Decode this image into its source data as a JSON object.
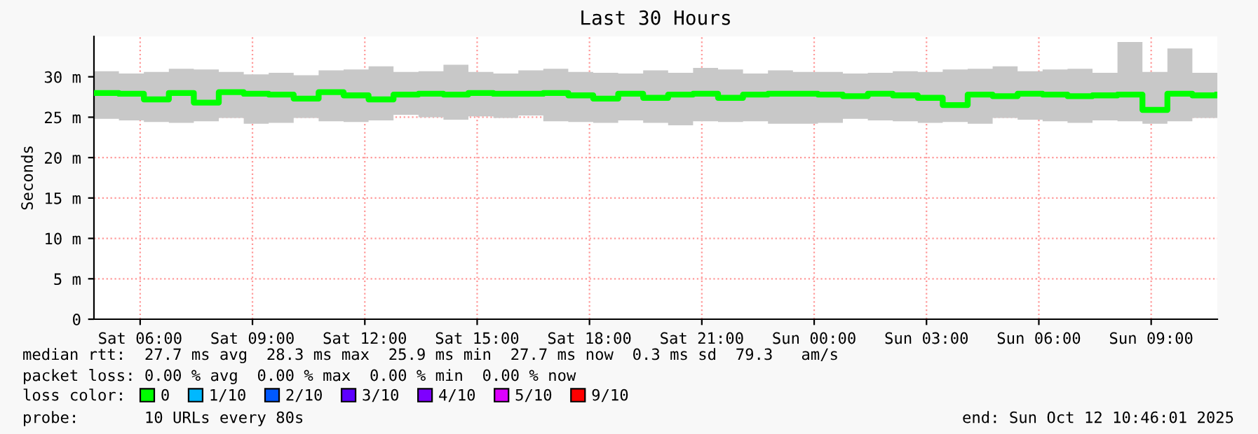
{
  "chart_data": {
    "type": "step",
    "title": "Last 30 Hours",
    "ylabel": "Seconds",
    "x": [
      "2025-10-11T04:46",
      "2025-10-11T05:26",
      "2025-10-11T06:06",
      "2025-10-11T06:46",
      "2025-10-11T07:26",
      "2025-10-11T08:06",
      "2025-10-11T08:46",
      "2025-10-11T09:26",
      "2025-10-11T10:06",
      "2025-10-11T10:46",
      "2025-10-11T11:26",
      "2025-10-11T12:06",
      "2025-10-11T12:46",
      "2025-10-11T13:26",
      "2025-10-11T14:06",
      "2025-10-11T14:46",
      "2025-10-11T15:26",
      "2025-10-11T16:06",
      "2025-10-11T16:46",
      "2025-10-11T17:26",
      "2025-10-11T18:06",
      "2025-10-11T18:46",
      "2025-10-11T19:26",
      "2025-10-11T20:06",
      "2025-10-11T20:46",
      "2025-10-11T21:26",
      "2025-10-11T22:06",
      "2025-10-11T22:46",
      "2025-10-11T23:26",
      "2025-10-12T00:06",
      "2025-10-12T00:46",
      "2025-10-12T01:26",
      "2025-10-12T02:06",
      "2025-10-12T02:46",
      "2025-10-12T03:26",
      "2025-10-12T04:06",
      "2025-10-12T04:46",
      "2025-10-12T05:26",
      "2025-10-12T06:06",
      "2025-10-12T06:46",
      "2025-10-12T07:26",
      "2025-10-12T08:06",
      "2025-10-12T08:46",
      "2025-10-12T09:26",
      "2025-10-12T10:06",
      "2025-10-12T10:46"
    ],
    "series": [
      {
        "name": "0",
        "color": "#00ff00",
        "values": [
          28.0,
          27.9,
          27.2,
          28.0,
          26.8,
          28.1,
          27.9,
          27.8,
          27.3,
          28.1,
          27.7,
          27.2,
          27.8,
          27.9,
          27.8,
          28.0,
          27.9,
          27.9,
          28.0,
          27.7,
          27.3,
          27.9,
          27.4,
          27.8,
          27.9,
          27.4,
          27.8,
          27.9,
          27.9,
          27.8,
          27.6,
          27.9,
          27.7,
          27.4,
          26.5,
          27.8,
          27.6,
          27.9,
          27.8,
          27.6,
          27.7,
          27.8,
          25.9,
          27.9,
          27.7,
          27.8
        ],
        "lower": [
          24.8,
          24.6,
          24.4,
          24.3,
          24.5,
          24.9,
          24.2,
          24.3,
          24.9,
          24.5,
          24.4,
          24.6,
          25.3,
          25.0,
          24.7,
          25.1,
          24.9,
          25.2,
          24.5,
          24.4,
          24.3,
          24.6,
          24.3,
          24.0,
          24.5,
          24.4,
          24.5,
          24.2,
          24.2,
          24.3,
          24.8,
          24.6,
          24.5,
          24.3,
          24.4,
          24.2,
          24.9,
          24.7,
          24.5,
          24.3,
          24.6,
          24.5,
          24.2,
          24.5,
          24.9,
          25.0
        ],
        "upper": [
          30.7,
          30.4,
          30.6,
          31.0,
          30.9,
          30.6,
          30.3,
          30.5,
          30.2,
          30.8,
          30.9,
          31.3,
          30.6,
          30.7,
          31.5,
          30.6,
          30.4,
          30.8,
          31.0,
          30.6,
          30.5,
          30.4,
          30.8,
          30.5,
          31.1,
          30.9,
          30.4,
          30.8,
          30.6,
          30.6,
          30.4,
          30.5,
          30.7,
          30.6,
          30.9,
          31.0,
          31.3,
          30.7,
          30.9,
          31.0,
          30.5,
          34.3,
          30.6,
          33.5,
          30.5,
          30.5
        ]
      },
      {
        "name": "1/10",
        "color": "#00b8ff",
        "values": [
          null,
          null,
          null,
          null,
          null,
          null,
          null,
          null,
          null,
          null,
          null,
          null,
          null,
          null,
          null,
          null,
          null,
          null,
          null,
          null,
          null,
          null,
          null,
          null,
          null,
          null,
          null,
          null,
          null,
          null,
          null,
          null,
          null,
          null,
          null,
          null,
          null,
          null,
          null,
          null,
          null,
          null,
          null,
          null,
          null,
          null
        ]
      },
      {
        "name": "2/10",
        "color": "#0059ff",
        "values": [
          null,
          null,
          null,
          null,
          null,
          null,
          null,
          null,
          null,
          null,
          null,
          null,
          null,
          null,
          null,
          null,
          null,
          null,
          null,
          null,
          null,
          null,
          null,
          null,
          null,
          null,
          null,
          null,
          null,
          null,
          null,
          null,
          null,
          null,
          null,
          null,
          null,
          null,
          null,
          null,
          null,
          null,
          null,
          null,
          null,
          null
        ]
      },
      {
        "name": "3/10",
        "color": "#5e00ff",
        "values": [
          null,
          null,
          null,
          null,
          null,
          null,
          null,
          null,
          null,
          null,
          null,
          null,
          null,
          null,
          null,
          null,
          null,
          null,
          null,
          null,
          null,
          null,
          null,
          null,
          null,
          null,
          null,
          null,
          null,
          null,
          null,
          null,
          null,
          null,
          null,
          null,
          null,
          null,
          null,
          null,
          null,
          null,
          null,
          null,
          null,
          null
        ]
      },
      {
        "name": "4/10",
        "color": "#7e00ff",
        "values": [
          null,
          null,
          null,
          null,
          null,
          null,
          null,
          null,
          null,
          null,
          null,
          null,
          null,
          null,
          null,
          null,
          null,
          null,
          null,
          null,
          null,
          null,
          null,
          null,
          null,
          null,
          null,
          null,
          null,
          null,
          null,
          null,
          null,
          null,
          null,
          null,
          null,
          null,
          null,
          null,
          null,
          null,
          null,
          null,
          null,
          null
        ]
      },
      {
        "name": "5/10",
        "color": "#dd00ff",
        "values": [
          null,
          null,
          null,
          null,
          null,
          null,
          null,
          null,
          null,
          null,
          null,
          null,
          null,
          null,
          null,
          null,
          null,
          null,
          null,
          null,
          null,
          null,
          null,
          null,
          null,
          null,
          null,
          null,
          null,
          null,
          null,
          null,
          null,
          null,
          null,
          null,
          null,
          null,
          null,
          null,
          null,
          null,
          null,
          null,
          null,
          null
        ]
      },
      {
        "name": "9/10",
        "color": "#ff0000",
        "values": [
          null,
          null,
          null,
          null,
          null,
          null,
          null,
          null,
          null,
          null,
          null,
          null,
          null,
          null,
          null,
          null,
          null,
          null,
          null,
          null,
          null,
          null,
          null,
          null,
          null,
          null,
          null,
          null,
          null,
          null,
          null,
          null,
          null,
          null,
          null,
          null,
          null,
          null,
          null,
          null,
          null,
          null,
          null,
          null,
          null,
          null
        ]
      }
    ],
    "legend_title": "loss color:",
    "legend": "bottom",
    "xlim": [
      "2025-10-11T04:46",
      "2025-10-12T10:46"
    ],
    "xticks": [
      {
        "value": "2025-10-11T06:00",
        "label": "Sat 06:00"
      },
      {
        "value": "2025-10-11T09:00",
        "label": "Sat 09:00"
      },
      {
        "value": "2025-10-11T12:00",
        "label": "Sat 12:00"
      },
      {
        "value": "2025-10-11T15:00",
        "label": "Sat 15:00"
      },
      {
        "value": "2025-10-11T18:00",
        "label": "Sat 18:00"
      },
      {
        "value": "2025-10-11T21:00",
        "label": "Sat 21:00"
      },
      {
        "value": "2025-10-12T00:00",
        "label": "Sun 00:00"
      },
      {
        "value": "2025-10-12T03:00",
        "label": "Sun 03:00"
      },
      {
        "value": "2025-10-12T06:00",
        "label": "Sun 06:00"
      },
      {
        "value": "2025-10-12T09:00",
        "label": "Sun 09:00"
      }
    ],
    "ylim": [
      0,
      35
    ],
    "yticks": [
      0,
      {
        "value": 5,
        "label": "5 m"
      },
      {
        "value": 10,
        "label": "10 m"
      },
      {
        "value": 15,
        "label": "15 m"
      },
      {
        "value": 20,
        "label": "20 m"
      },
      {
        "value": 25,
        "label": "25 m"
      },
      {
        "value": 30,
        "label": "30 m"
      }
    ],
    "grid": true,
    "annotations": [
      "median rtt:  27.7 ms avg  28.3 ms max  25.9 ms min  27.7 ms now  0.3 ms sd  79.3   am/s",
      "packet loss: 0.00 % avg  0.00 % max  0.00 % min  0.00 % now",
      "probe:       10 URLs every 80s",
      "end: Sun Oct 12 10:46:01 2025"
    ]
  }
}
